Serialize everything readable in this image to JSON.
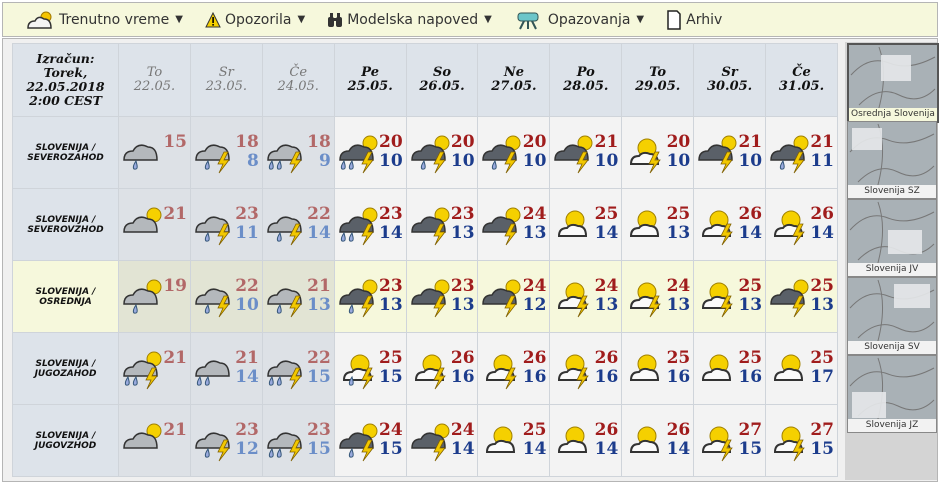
{
  "nav": [
    {
      "label": "Trenutno vreme",
      "icon": "partly-cloudy-icon",
      "dropdown": true
    },
    {
      "label": "Opozorila",
      "icon": "warning-icon",
      "dropdown": true
    },
    {
      "label": "Modelska napoved",
      "icon": "binoculars-icon",
      "dropdown": true
    },
    {
      "label": "Opazovanja",
      "icon": "telescope-icon",
      "dropdown": true
    },
    {
      "label": "Arhiv",
      "icon": "document-icon",
      "dropdown": false
    }
  ],
  "header": {
    "calc": [
      "Izračun:",
      "Torek,",
      "22.05.2018",
      "2:00 CEST"
    ],
    "days": [
      {
        "day": "To",
        "date": "22.05.",
        "past": true
      },
      {
        "day": "Sr",
        "date": "23.05.",
        "past": true
      },
      {
        "day": "Če",
        "date": "24.05.",
        "past": true
      },
      {
        "day": "Pe",
        "date": "25.05.",
        "past": false
      },
      {
        "day": "So",
        "date": "26.05.",
        "past": false
      },
      {
        "day": "Ne",
        "date": "27.05.",
        "past": false
      },
      {
        "day": "Po",
        "date": "28.05.",
        "past": false
      },
      {
        "day": "To",
        "date": "29.05.",
        "past": false
      },
      {
        "day": "Sr",
        "date": "30.05.",
        "past": false
      },
      {
        "day": "Če",
        "date": "31.05.",
        "past": false
      }
    ]
  },
  "rows": [
    {
      "region": [
        "SLOVENIJA /",
        "SEVEROZAHOD"
      ],
      "highlight": false,
      "cells": [
        {
          "icon": "cloud-rain",
          "max": "15",
          "min": ""
        },
        {
          "icon": "cloud-rain-storm",
          "max": "18",
          "min": "8"
        },
        {
          "icon": "cloud-heavyrain-storm",
          "max": "18",
          "min": "9"
        },
        {
          "icon": "darkcloud-sun-heavyrain-storm",
          "max": "20",
          "min": "10"
        },
        {
          "icon": "darkcloud-sun-rain-storm",
          "max": "20",
          "min": "10"
        },
        {
          "icon": "darkcloud-sun-rain-storm",
          "max": "20",
          "min": "10"
        },
        {
          "icon": "darkcloud-sun-storm",
          "max": "21",
          "min": "10"
        },
        {
          "icon": "sun-cloud-storm",
          "max": "20",
          "min": "10"
        },
        {
          "icon": "darkcloud-sun-storm",
          "max": "21",
          "min": "10"
        },
        {
          "icon": "darkcloud-sun-rain-storm",
          "max": "21",
          "min": "11"
        }
      ]
    },
    {
      "region": [
        "SLOVENIJA /",
        "SEVEROVZHOD"
      ],
      "highlight": false,
      "cells": [
        {
          "icon": "cloud-sun",
          "max": "21",
          "min": ""
        },
        {
          "icon": "cloud-rain-storm",
          "max": "23",
          "min": "11"
        },
        {
          "icon": "cloud-rain-storm",
          "max": "22",
          "min": "14"
        },
        {
          "icon": "darkcloud-sun-heavyrain-storm",
          "max": "23",
          "min": "14"
        },
        {
          "icon": "darkcloud-sun-storm",
          "max": "23",
          "min": "13"
        },
        {
          "icon": "darkcloud-sun-storm",
          "max": "24",
          "min": "13"
        },
        {
          "icon": "sun-cloud",
          "max": "25",
          "min": "14"
        },
        {
          "icon": "sun-cloud",
          "max": "25",
          "min": "13"
        },
        {
          "icon": "sun-cloud-storm",
          "max": "26",
          "min": "14"
        },
        {
          "icon": "sun-cloud-storm",
          "max": "26",
          "min": "14"
        }
      ]
    },
    {
      "region": [
        "SLOVENIJA /",
        "OSREDNJA"
      ],
      "highlight": true,
      "cells": [
        {
          "icon": "cloud-sun-rain",
          "max": "19",
          "min": ""
        },
        {
          "icon": "cloud-rain-storm",
          "max": "22",
          "min": "10"
        },
        {
          "icon": "cloud-rain-storm",
          "max": "21",
          "min": "13"
        },
        {
          "icon": "darkcloud-sun-rain-storm",
          "max": "23",
          "min": "13"
        },
        {
          "icon": "darkcloud-sun-storm",
          "max": "23",
          "min": "13"
        },
        {
          "icon": "darkcloud-sun-storm",
          "max": "24",
          "min": "12"
        },
        {
          "icon": "sun-cloud-storm",
          "max": "24",
          "min": "13"
        },
        {
          "icon": "sun-cloud-storm",
          "max": "24",
          "min": "13"
        },
        {
          "icon": "sun-cloud-storm",
          "max": "25",
          "min": "13"
        },
        {
          "icon": "darkcloud-sun-storm",
          "max": "25",
          "min": "13"
        }
      ]
    },
    {
      "region": [
        "SLOVENIJA /",
        "JUGOZAHOD"
      ],
      "highlight": false,
      "cells": [
        {
          "icon": "cloud-sun-heavyrain-storm",
          "max": "21",
          "min": ""
        },
        {
          "icon": "cloud-heavyrain",
          "max": "21",
          "min": "14"
        },
        {
          "icon": "cloud-heavyrain-storm",
          "max": "22",
          "min": "15"
        },
        {
          "icon": "sun-cloud-rain-storm",
          "max": "25",
          "min": "15"
        },
        {
          "icon": "sun-cloud-storm",
          "max": "26",
          "min": "16"
        },
        {
          "icon": "sun-cloud-storm",
          "max": "26",
          "min": "16"
        },
        {
          "icon": "sun-cloud-storm",
          "max": "26",
          "min": "16"
        },
        {
          "icon": "sun-cloud",
          "max": "25",
          "min": "16"
        },
        {
          "icon": "sun-cloud",
          "max": "25",
          "min": "16"
        },
        {
          "icon": "sun-cloud",
          "max": "25",
          "min": "17"
        }
      ]
    },
    {
      "region": [
        "SLOVENIJA /",
        "JUGOVZHOD"
      ],
      "highlight": false,
      "cells": [
        {
          "icon": "cloud-sun",
          "max": "21",
          "min": ""
        },
        {
          "icon": "cloud-rain-storm",
          "max": "23",
          "min": "12"
        },
        {
          "icon": "cloud-heavyrain-storm",
          "max": "23",
          "min": "15"
        },
        {
          "icon": "darkcloud-sun-rain-storm",
          "max": "24",
          "min": "15"
        },
        {
          "icon": "darkcloud-sun-storm",
          "max": "24",
          "min": "14"
        },
        {
          "icon": "sun-cloud",
          "max": "25",
          "min": "14"
        },
        {
          "icon": "sun-cloud",
          "max": "26",
          "min": "14"
        },
        {
          "icon": "sun-cloud",
          "max": "26",
          "min": "14"
        },
        {
          "icon": "sun-cloud-storm",
          "max": "27",
          "min": "15"
        },
        {
          "icon": "sun-cloud-storm",
          "max": "27",
          "min": "15"
        }
      ]
    }
  ],
  "regions": [
    {
      "label": "Osrednja Slovenija",
      "selected": true
    },
    {
      "label": "Slovenija SZ",
      "selected": false
    },
    {
      "label": "Slovenija JV",
      "selected": false
    },
    {
      "label": "Slovenija SV",
      "selected": false
    },
    {
      "label": "Slovenija JZ",
      "selected": false
    }
  ]
}
